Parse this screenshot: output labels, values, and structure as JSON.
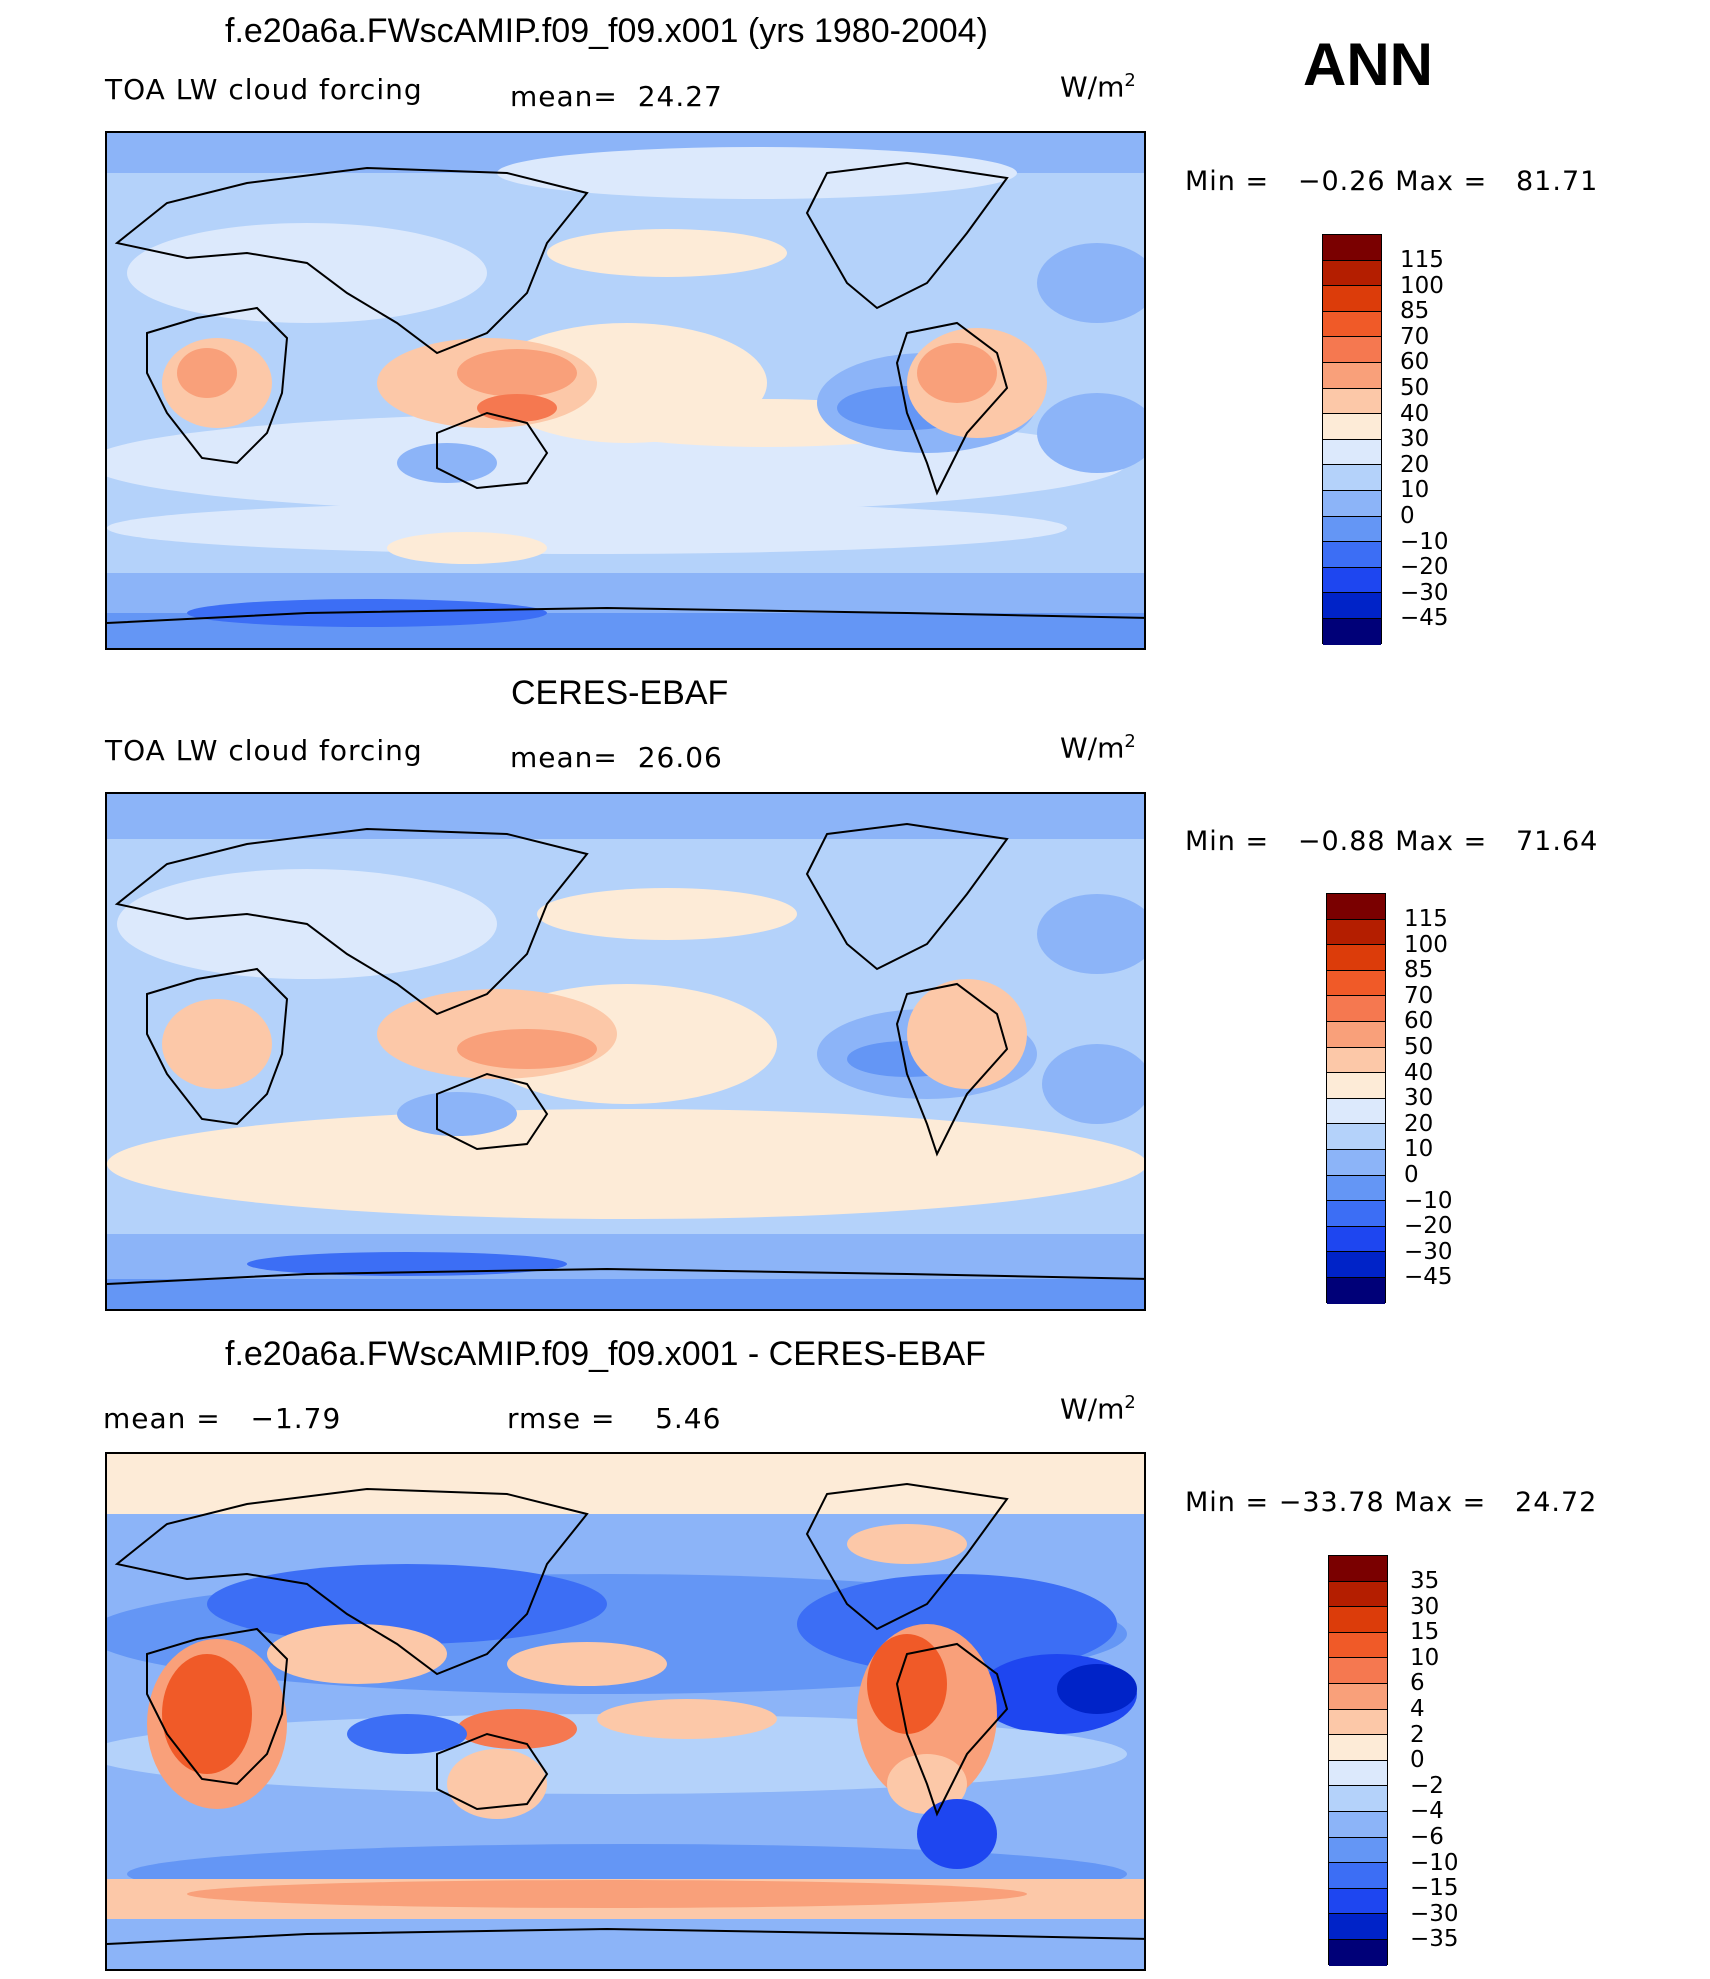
{
  "season": "ANN",
  "palette_model": [
    "#000078",
    "#0012a0",
    "#0023c8",
    "#1e46f0",
    "#3c6ef5",
    "#6496f5",
    "#8cb4f8",
    "#b4d2fa",
    "#dce9fc",
    "#fdebd7",
    "#fcc8a8",
    "#f9a07a",
    "#f57850",
    "#f05a28",
    "#dc3c0a",
    "#b41e00",
    "#7a0000"
  ],
  "palette_diff": [
    "#000078",
    "#0012a0",
    "#0023c8",
    "#1e46f0",
    "#3c6ef5",
    "#6496f5",
    "#8cb4f8",
    "#b4d2fa",
    "#dce9fc",
    "#fdebd7",
    "#fcc8a8",
    "#f9a07a",
    "#f57850",
    "#f05a28",
    "#dc3c0a",
    "#b41e00",
    "#7a0000"
  ],
  "panels": [
    {
      "title": "f.e20a6a.FWscAMIP.f09_f09.x001 (yrs 1980-2004)",
      "variable": "TOA LW cloud forcing",
      "stat_label": "mean=",
      "stat_value": "24.27",
      "units_base": "W/m",
      "units_exp": "2",
      "min_label": "Min =",
      "min_value": "−0.26",
      "max_label": "Max =",
      "max_value": "81.71",
      "colorbar_labels": [
        "115",
        "100",
        "85",
        "70",
        "60",
        "50",
        "40",
        "30",
        "20",
        "10",
        "0",
        "−10",
        "−20",
        "−30",
        "−45"
      ]
    },
    {
      "title": "CERES-EBAF",
      "variable": "TOA LW cloud forcing",
      "stat_label": "mean=",
      "stat_value": "26.06",
      "units_base": "W/m",
      "units_exp": "2",
      "min_label": "Min =",
      "min_value": "−0.88",
      "max_label": "Max =",
      "max_value": "71.64",
      "colorbar_labels": [
        "115",
        "100",
        "85",
        "70",
        "60",
        "50",
        "40",
        "30",
        "20",
        "10",
        "0",
        "−10",
        "−20",
        "−30",
        "−45"
      ]
    },
    {
      "title": "f.e20a6a.FWscAMIP.f09_f09.x001 - CERES-EBAF",
      "mean_label": "mean =",
      "mean_value": "−1.79",
      "rmse_label": "rmse =",
      "rmse_value": "5.46",
      "units_base": "W/m",
      "units_exp": "2",
      "min_label": "Min =",
      "min_value": "−33.78",
      "max_label": "Max =",
      "max_value": "24.72",
      "colorbar_labels": [
        "35",
        "30",
        "15",
        "10",
        "6",
        "4",
        "2",
        "0",
        "−2",
        "−4",
        "−6",
        "−10",
        "−15",
        "−30",
        "−35"
      ]
    }
  ]
}
